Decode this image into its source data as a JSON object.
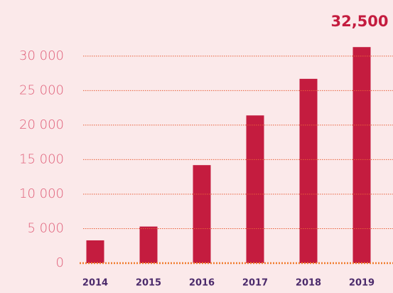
{
  "chart_data": {
    "type": "bar",
    "annotation": "32,500",
    "categories": [
      "2014",
      "2015",
      "2016",
      "2017",
      "2018",
      "2019"
    ],
    "values": [
      3300,
      5300,
      14200,
      21400,
      26700,
      31300
    ],
    "color": "#c41c3f",
    "ylim": [
      0,
      34000
    ],
    "yticks": [
      0,
      {
        "value": 5000,
        "label": "5 000"
      },
      {
        "value": 10000,
        "label": "10 000"
      },
      {
        "value": 15000,
        "label": "15 000"
      },
      {
        "value": 20000,
        "label": "20 000"
      },
      {
        "value": 25000,
        "label": "25 000"
      },
      {
        "value": 30000,
        "label": "30 000"
      }
    ],
    "grid": true
  }
}
